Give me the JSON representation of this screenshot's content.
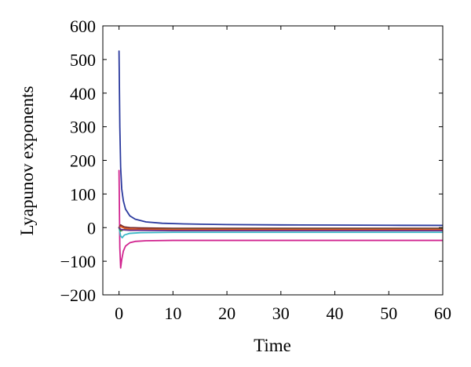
{
  "chart_data": {
    "type": "line",
    "title": "",
    "xlabel": "Time",
    "ylabel": "Lyapunov exponents",
    "xlim": [
      -3,
      60
    ],
    "ylim": [
      -200,
      600
    ],
    "xticks": [
      0,
      10,
      20,
      30,
      40,
      50,
      60
    ],
    "yticks": [
      -200,
      -100,
      0,
      100,
      200,
      300,
      400,
      500,
      600
    ],
    "grid": false,
    "legend": "none",
    "series": [
      {
        "color": "#2b3a9e",
        "x": [
          0,
          0.15,
          0.3,
          0.5,
          0.8,
          1.2,
          2,
          3,
          5,
          8,
          12,
          20,
          30,
          40,
          50,
          60
        ],
        "y": [
          525,
          300,
          180,
          115,
          80,
          55,
          35,
          25,
          17,
          13,
          11,
          9,
          8,
          7.5,
          7,
          6.5
        ]
      },
      {
        "color": "#d1248f",
        "x": [
          0,
          0.15,
          0.3,
          0.5,
          0.8,
          1.2,
          2,
          3,
          5,
          10,
          20,
          40,
          60
        ],
        "y": [
          170,
          -60,
          -120,
          -95,
          -70,
          -55,
          -45,
          -41,
          -39,
          -38,
          -38,
          -38,
          -38
        ]
      },
      {
        "color": "#3bb7c6",
        "x": [
          0,
          0.3,
          0.6,
          1,
          2,
          4,
          10,
          20,
          40,
          60
        ],
        "y": [
          0,
          -25,
          -30,
          -22,
          -17,
          -15,
          -14,
          -14,
          -14,
          -14
        ]
      },
      {
        "color": "#7a2a2a",
        "x": [
          0,
          0.3,
          0.6,
          1,
          2,
          4,
          10,
          30,
          60
        ],
        "y": [
          0,
          8,
          5,
          2,
          0,
          -1,
          -2,
          -2,
          -2
        ]
      },
      {
        "color": "#3a8a3a",
        "x": [
          0,
          0.3,
          0.6,
          1,
          2,
          4,
          10,
          30,
          60
        ],
        "y": [
          0,
          -10,
          -8,
          -6,
          -5,
          -5,
          -5,
          -5,
          -5
        ]
      },
      {
        "color": "#e05a1e",
        "x": [
          0,
          0.3,
          0.6,
          1,
          2,
          4,
          10,
          30,
          60
        ],
        "y": [
          0,
          3,
          1,
          -2,
          -4,
          -5,
          -6,
          -6,
          -6
        ]
      },
      {
        "color": "#6a2c8c",
        "x": [
          0,
          0.3,
          0.6,
          1,
          2,
          4,
          10,
          30,
          60
        ],
        "y": [
          0,
          -5,
          -6,
          -7,
          -8,
          -8,
          -9,
          -9,
          -9
        ]
      }
    ]
  }
}
